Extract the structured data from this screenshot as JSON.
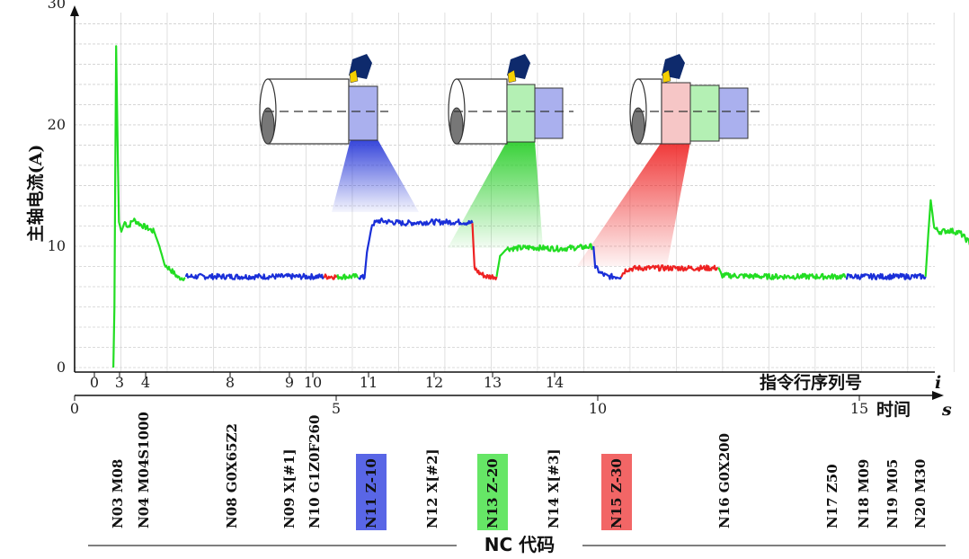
{
  "chart_data": {
    "type": "line",
    "ylabel": "主轴电流(A)",
    "ylim": [
      0,
      30
    ],
    "y_ticks": [
      "0",
      "10",
      "20",
      "30"
    ],
    "xlabel_instruction": "指令行序列号",
    "xlabel_instruction_symbol": "i",
    "xlabel_time": "时间",
    "xlabel_time_symbol": "s",
    "xlim_time": [
      0,
      19.2
    ],
    "time_ticks": [
      "0",
      "5",
      "10",
      "15"
    ],
    "instruction_ticks": [
      {
        "label": "0",
        "t": 0.9
      },
      {
        "label": "3",
        "t": 2.1
      },
      {
        "label": "4",
        "t": 3.2
      },
      {
        "label": "8",
        "t": 7.1
      },
      {
        "label": "9",
        "t": 9.8
      },
      {
        "label": "10",
        "t": 10.9
      },
      {
        "label": "11",
        "t": 12.7
      },
      {
        "label": "12",
        "t": 14.9
      },
      {
        "label": "13",
        "t": 16.8
      },
      {
        "label": "14",
        "t": 18.7
      }
    ],
    "series": [
      {
        "color": "#22dd22",
        "x": [
          1.12,
          1.15,
          1.2,
          1.28,
          1.35,
          1.45,
          1.55,
          1.7,
          1.9,
          2.1,
          2.3,
          2.45,
          2.6,
          2.8,
          3.0,
          3.2
        ],
        "y": [
          0,
          5,
          26.5,
          12,
          11.2,
          12,
          11.6,
          12.2,
          11.8,
          11.5,
          11.2,
          10,
          8.5,
          8,
          7.4,
          7.4
        ]
      },
      {
        "color": "#1a2fd8",
        "x": [
          3.2,
          4.5,
          6.0,
          7.2
        ],
        "y": [
          7.5,
          7.5,
          7.5,
          7.5
        ]
      },
      {
        "color": "#ee2222",
        "x": [
          7.2,
          7.6
        ],
        "y": [
          7.5,
          7.5
        ]
      },
      {
        "color": "#22dd22",
        "x": [
          7.6,
          8.2
        ],
        "y": [
          7.5,
          7.5
        ]
      },
      {
        "color": "#1a2fd8",
        "x": [
          8.2,
          8.38,
          8.45,
          8.6,
          8.8,
          9.5,
          10.3,
          11.2,
          11.5
        ],
        "y": [
          7.5,
          7.4,
          9.5,
          11.8,
          12.1,
          11.9,
          12,
          12,
          11.9
        ]
      },
      {
        "color": "#ee2222",
        "x": [
          11.5,
          11.56,
          11.7,
          11.9,
          12.2
        ],
        "y": [
          11.9,
          8.2,
          7.8,
          7.5,
          7.5
        ]
      },
      {
        "color": "#22dd22",
        "x": [
          12.2,
          12.3,
          12.5,
          13.2,
          14.0,
          14.6,
          15.0
        ],
        "y": [
          7.5,
          9.2,
          9.8,
          9.9,
          9.8,
          9.9,
          10
        ]
      },
      {
        "color": "#1a2fd8",
        "x": [
          15.0,
          15.05,
          15.2,
          15.4,
          15.55,
          15.8
        ],
        "y": [
          10,
          8.3,
          7.8,
          7.5,
          7.5,
          7.5
        ]
      },
      {
        "color": "#ee2222",
        "x": [
          15.8,
          15.95,
          16.3,
          17.2,
          18.1,
          18.6
        ],
        "y": [
          7.6,
          8.1,
          8.2,
          8.2,
          8.2,
          8.2
        ]
      },
      {
        "color": "#22dd22",
        "x": [
          18.6,
          18.7,
          20.0,
          21.2,
          22.3
        ],
        "y": [
          8.2,
          7.6,
          7.5,
          7.5,
          7.5
        ]
      },
      {
        "color": "#1a2fd8",
        "x": [
          22.3,
          23.5,
          24.6
        ],
        "y": [
          7.5,
          7.5,
          7.5
        ]
      },
      {
        "color": "#22dd22",
        "x": [
          24.6,
          24.68,
          24.75,
          24.85,
          25.0,
          25.3,
          25.6,
          25.8,
          25.95,
          26.1,
          26.2,
          26.3,
          26.35
        ],
        "y": [
          7.5,
          11,
          13.8,
          11.5,
          11.2,
          11.3,
          11.1,
          10.5,
          10.1,
          10.2,
          10,
          4,
          0
        ]
      }
    ],
    "insets": [
      {
        "label": "N11 Z-10",
        "color": "#2a3ad8"
      },
      {
        "label": "N13 Z-20",
        "color": "#22cc22"
      },
      {
        "label": "N15 Z-30",
        "color": "#ee2222"
      }
    ]
  },
  "nc_codes": {
    "title": "NC 代码",
    "items": [
      {
        "text": "N03 M08"
      },
      {
        "text": "N04 M04S1000"
      },
      {
        "text": "N08 G0X65Z2"
      },
      {
        "text": "N09 X[#1]"
      },
      {
        "text": "N10 G1Z0F260"
      },
      {
        "text": "N11 Z-10",
        "highlight": "#2233dd"
      },
      {
        "text": "N12 X[#2]"
      },
      {
        "text": "N13 Z-20",
        "highlight": "#33dd33"
      },
      {
        "text": "N14 X[#3]"
      },
      {
        "text": "N15 Z-30",
        "highlight": "#ee3333"
      },
      {
        "text": "N16 G0X200"
      },
      {
        "text": "N17 Z50"
      },
      {
        "text": "N18 M09"
      },
      {
        "text": "N19 M05"
      },
      {
        "text": "N20 M30"
      }
    ]
  }
}
